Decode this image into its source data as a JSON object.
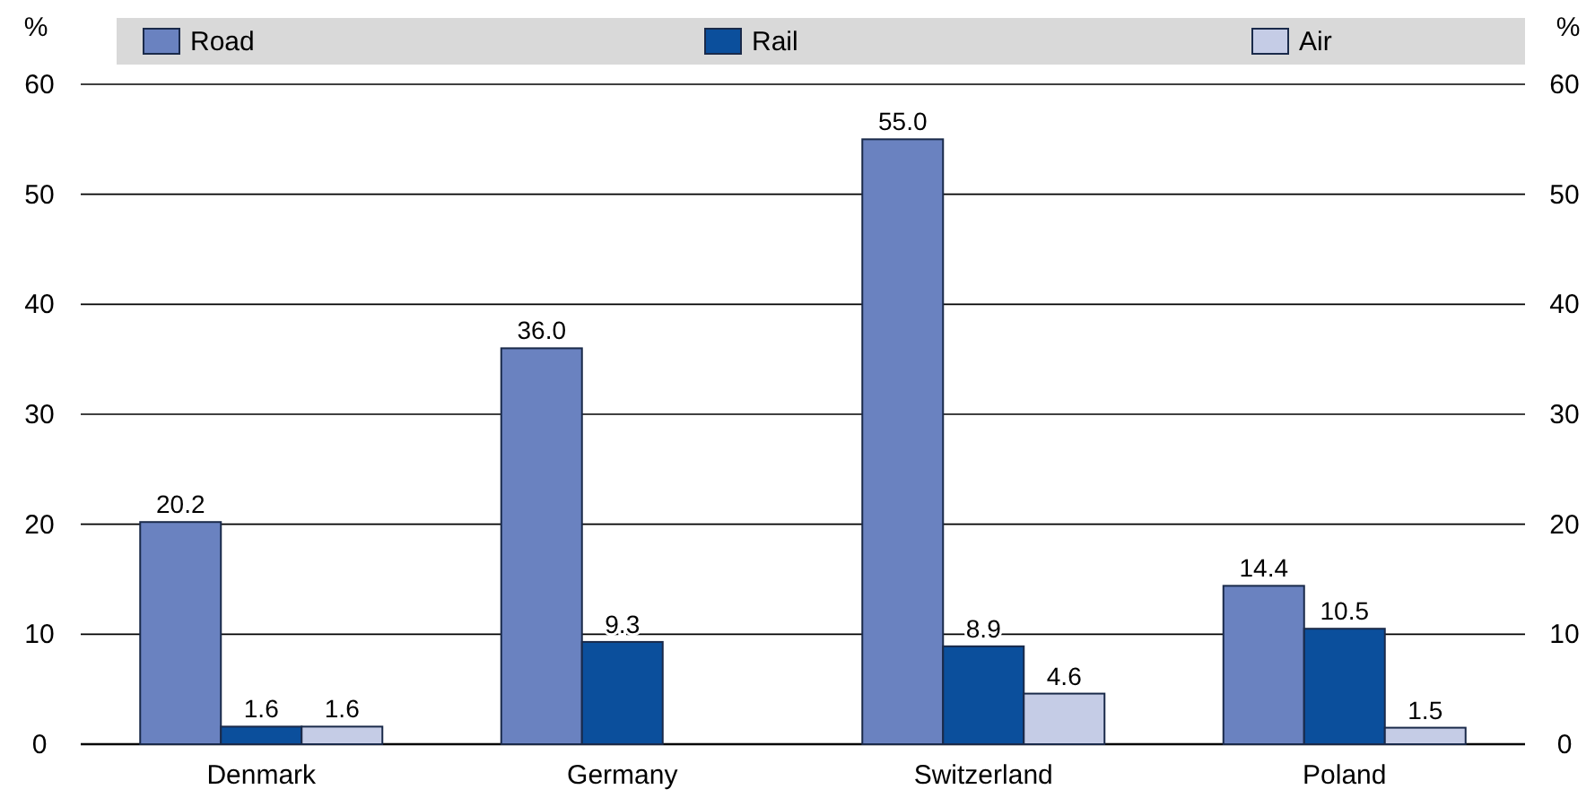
{
  "chart_data": {
    "type": "bar",
    "ylabel": "%",
    "y2label": "%",
    "categories": [
      "Denmark",
      "Germany",
      "Switzerland",
      "Poland"
    ],
    "series": [
      {
        "name": "Road",
        "color": "#6a82c0",
        "values": [
          20.2,
          36.0,
          55.0,
          14.4
        ],
        "value_labels": [
          "20.2",
          "36.0",
          "55.0",
          "14.4"
        ]
      },
      {
        "name": "Rail",
        "color": "#0b4f9c",
        "values": [
          1.6,
          9.3,
          8.9,
          10.5
        ],
        "value_labels": [
          "1.6",
          "9.3",
          "8.9",
          "10.5"
        ]
      },
      {
        "name": "Air",
        "color": "#c5cce6",
        "values": [
          1.6,
          null,
          4.6,
          1.5
        ],
        "value_labels": [
          "1.6",
          null,
          "4.6",
          "1.5"
        ]
      }
    ],
    "ylim": [
      0,
      60
    ],
    "yticks": [
      0,
      10,
      20,
      30,
      40,
      50,
      60
    ],
    "y2lim": [
      0,
      60
    ],
    "y2ticks": [
      0,
      10,
      20,
      30,
      40,
      50,
      60
    ],
    "grid": "y",
    "legend": "top"
  }
}
